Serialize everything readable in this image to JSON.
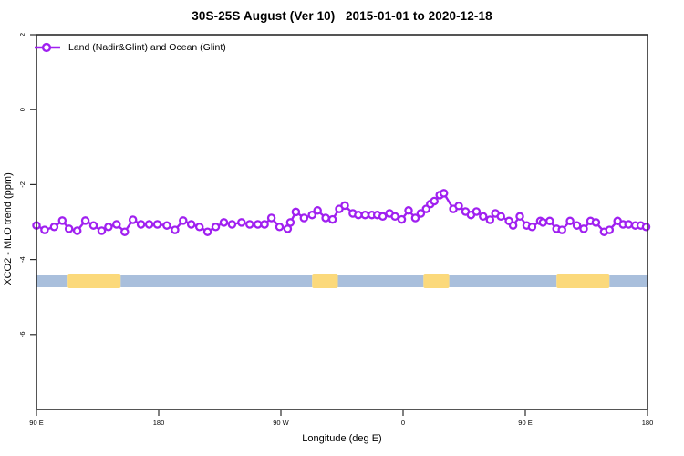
{
  "chart_data": {
    "type": "line",
    "title": "30S-25S August (Ver 10)   2015-01-01 to 2020-12-18",
    "xlabel": "Longitude (deg E)",
    "ylabel": "XCO2 - MLO trend (ppm)",
    "grid": false,
    "legend": {
      "position": "top-left",
      "entries": [
        {
          "label": "Land (Nadir&Glint) and Ocean (Glint)",
          "marker": "open-circle-on-line"
        }
      ]
    },
    "xlim_longitude_wrapped": [
      90,
      540
    ],
    "ylim": [
      -8,
      2
    ],
    "x_ticks": [
      {
        "lon": 90,
        "label": "90 E"
      },
      {
        "lon": 180,
        "label": "180"
      },
      {
        "lon": 270,
        "label": "90 W"
      },
      {
        "lon": 360,
        "label": "0"
      },
      {
        "lon": 450,
        "label": "90 E"
      },
      {
        "lon": 540,
        "label": "180"
      }
    ],
    "y_ticks": [
      {
        "value": 2,
        "label": "2"
      },
      {
        "value": 0,
        "label": "0"
      },
      {
        "value": -2,
        "label": "-2"
      },
      {
        "value": -4,
        "label": "-4"
      },
      {
        "value": -6,
        "label": "-6"
      }
    ],
    "series": [
      {
        "name": "Land (Nadir&Glint) and Ocean (Glint)",
        "x_longitude": [
          90,
          96,
          103,
          109,
          114,
          120,
          126,
          132,
          138,
          143,
          149,
          155,
          161,
          167,
          173,
          179,
          186,
          192,
          198,
          204,
          210,
          216,
          222,
          228,
          234,
          241,
          247,
          253,
          258,
          263,
          269,
          275,
          277,
          281,
          287,
          293,
          297,
          303,
          308,
          313,
          317,
          323,
          327,
          332,
          337,
          341,
          345,
          350,
          354,
          359,
          364,
          369,
          373,
          377,
          380,
          383,
          387,
          390,
          397,
          401,
          406,
          410,
          414,
          419,
          424,
          428,
          432,
          438,
          441,
          446,
          451,
          455,
          461,
          463,
          468,
          473,
          477,
          483,
          488,
          493,
          498,
          502,
          508,
          512,
          518,
          522,
          526,
          531,
          535,
          539
        ],
        "values_ppm": [
          -3.09,
          -3.21,
          -3.13,
          -2.96,
          -3.18,
          -3.23,
          -2.96,
          -3.09,
          -3.23,
          -3.13,
          -3.06,
          -3.26,
          -2.94,
          -3.06,
          -3.06,
          -3.06,
          -3.09,
          -3.21,
          -2.96,
          -3.06,
          -3.13,
          -3.26,
          -3.13,
          -3.01,
          -3.06,
          -3.01,
          -3.06,
          -3.06,
          -3.06,
          -2.89,
          -3.13,
          -3.18,
          -3.01,
          -2.73,
          -2.89,
          -2.81,
          -2.69,
          -2.89,
          -2.93,
          -2.65,
          -2.56,
          -2.77,
          -2.81,
          -2.81,
          -2.81,
          -2.81,
          -2.85,
          -2.77,
          -2.85,
          -2.93,
          -2.69,
          -2.89,
          -2.77,
          -2.65,
          -2.52,
          -2.44,
          -2.28,
          -2.23,
          -2.65,
          -2.57,
          -2.72,
          -2.81,
          -2.72,
          -2.85,
          -2.94,
          -2.77,
          -2.85,
          -2.97,
          -3.09,
          -2.85,
          -3.09,
          -3.13,
          -2.97,
          -3.01,
          -2.97,
          -3.18,
          -3.21,
          -2.97,
          -3.09,
          -3.18,
          -2.97,
          -3.01,
          -3.26,
          -3.21,
          -2.97,
          -3.06,
          -3.06,
          -3.09,
          -3.09,
          -3.13
        ]
      }
    ],
    "surface_band": {
      "y_center_ppm": -4.5,
      "segments": [
        {
          "from": 90,
          "to": 113,
          "type": "ocean"
        },
        {
          "from": 113,
          "to": 152,
          "type": "land"
        },
        {
          "from": 152,
          "to": 293,
          "type": "ocean"
        },
        {
          "from": 293,
          "to": 312,
          "type": "land"
        },
        {
          "from": 312,
          "to": 375,
          "type": "ocean"
        },
        {
          "from": 375,
          "to": 394,
          "type": "land"
        },
        {
          "from": 394,
          "to": 473,
          "type": "ocean"
        },
        {
          "from": 473,
          "to": 512,
          "type": "land"
        },
        {
          "from": 512,
          "to": 540,
          "type": "ocean"
        }
      ]
    },
    "colors": {
      "series": "#A020F0",
      "ocean": "#A9BFDC",
      "land": "#FBD97B",
      "axis": "#2b2b2b",
      "text": "#000000"
    }
  }
}
